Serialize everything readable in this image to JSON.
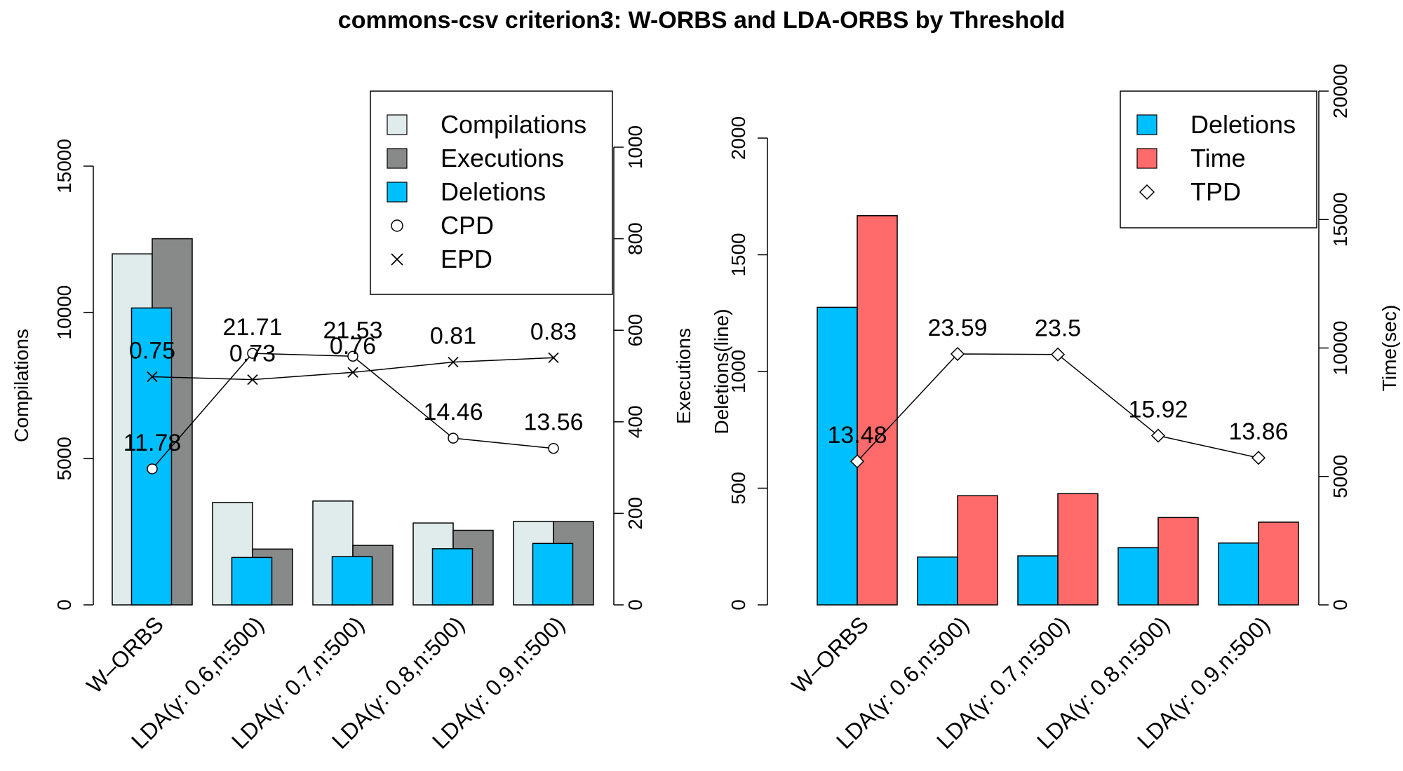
{
  "title": "commons-csv criterion3: W-ORBS and LDA-ORBS by Threshold",
  "chart_data": [
    {
      "type": "bar",
      "panel": "left",
      "categories": [
        "W–ORBS",
        "LDA(γ: 0.6,n:500)",
        "LDA(γ: 0.7,n:500)",
        "LDA(γ: 0.8,n:500)",
        "LDA(γ: 0.9,n:500)"
      ],
      "ylabel_left": "Compilations",
      "ylabel_right": "Executions",
      "ylim_left": [
        0,
        15000
      ],
      "ylim_right": [
        0,
        1000
      ],
      "yticks_left": [
        0,
        5000,
        10000,
        15000
      ],
      "yticks_right": [
        0,
        200,
        400,
        600,
        800,
        1000
      ],
      "series": [
        {
          "name": "Compilations",
          "axis": "left",
          "color": "#e0ebeb",
          "values": [
            12000,
            3500,
            3550,
            2800,
            2850
          ]
        },
        {
          "name": "Executions",
          "axis": "right",
          "color": "#878a89",
          "values": [
            800,
            122,
            130,
            163,
            182
          ]
        },
        {
          "name": "Deletions",
          "axis": "left",
          "color": "#00bfff",
          "values": [
            10150,
            1620,
            1650,
            1920,
            2100
          ]
        },
        {
          "name": "CPD",
          "axis": "left",
          "marker": "circle",
          "values": [
            4650,
            8600,
            8500,
            5700,
            5350
          ],
          "labels": [
            "11.78",
            "21.71",
            "21.53",
            "14.46",
            "13.56"
          ]
        },
        {
          "name": "EPD",
          "axis": "left",
          "marker": "x",
          "values": [
            7800,
            7700,
            7950,
            8300,
            8450
          ],
          "labels": [
            "0.75",
            "0.73",
            "0.76",
            "0.81",
            "0.83"
          ]
        }
      ],
      "legend": [
        "Compilations",
        "Executions",
        "Deletions",
        "CPD",
        "EPD"
      ],
      "legend_position": "top-right"
    },
    {
      "type": "bar",
      "panel": "right",
      "categories": [
        "W–ORBS",
        "LDA(γ: 0.6,n:500)",
        "LDA(γ: 0.7,n:500)",
        "LDA(γ: 0.8,n:500)",
        "LDA(γ: 0.9,n:500)"
      ],
      "ylabel_left": "Deletions(line)",
      "ylabel_right": "Time(sec)",
      "ylim_left": [
        0,
        2000
      ],
      "ylim_right": [
        0,
        20000
      ],
      "yticks_left": [
        0,
        500,
        1000,
        1500,
        2000
      ],
      "yticks_right": [
        0,
        5000,
        10000,
        15000,
        20000
      ],
      "series": [
        {
          "name": "Deletions",
          "axis": "left",
          "color": "#00bfff",
          "values": [
            1275,
            205,
            210,
            245,
            265
          ]
        },
        {
          "name": "Time",
          "axis": "right",
          "color": "#ff6a6a",
          "values": [
            15150,
            4250,
            4330,
            3400,
            3220
          ]
        },
        {
          "name": "TPD",
          "axis": "left",
          "marker": "diamond",
          "values": [
            615,
            1075,
            1073,
            725,
            630
          ],
          "labels": [
            "13.48",
            "23.59",
            "23.5",
            "15.92",
            "13.86"
          ]
        }
      ],
      "legend": [
        "Deletions",
        "Time",
        "TPD"
      ],
      "legend_position": "top-right"
    }
  ]
}
